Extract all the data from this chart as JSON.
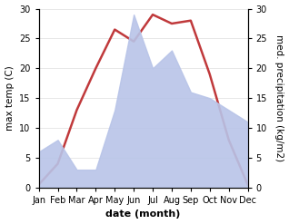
{
  "months": [
    "Jan",
    "Feb",
    "Mar",
    "Apr",
    "May",
    "Jun",
    "Jul",
    "Aug",
    "Sep",
    "Oct",
    "Nov",
    "Dec"
  ],
  "temperature": [
    0.5,
    4.0,
    13.0,
    20.0,
    26.5,
    24.5,
    29.0,
    27.5,
    28.0,
    19.0,
    8.0,
    0.5
  ],
  "precipitation": [
    6.0,
    8.0,
    3.0,
    3.0,
    13.0,
    29.0,
    20.0,
    23.0,
    16.0,
    15.0,
    13.0,
    11.0
  ],
  "temp_color": "#c0393b",
  "precip_fill_color": "#b8c4e8",
  "ylabel_left": "max temp (C)",
  "ylabel_right": "med. precipitation (kg/m2)",
  "xlabel": "date (month)",
  "ylim_left": [
    0,
    30
  ],
  "ylim_right": [
    0,
    30
  ],
  "yticks": [
    0,
    5,
    10,
    15,
    20,
    25,
    30
  ],
  "bg_color": "#ffffff",
  "label_fontsize": 7.5,
  "tick_fontsize": 7,
  "xlabel_fontsize": 8,
  "linewidth": 1.8
}
